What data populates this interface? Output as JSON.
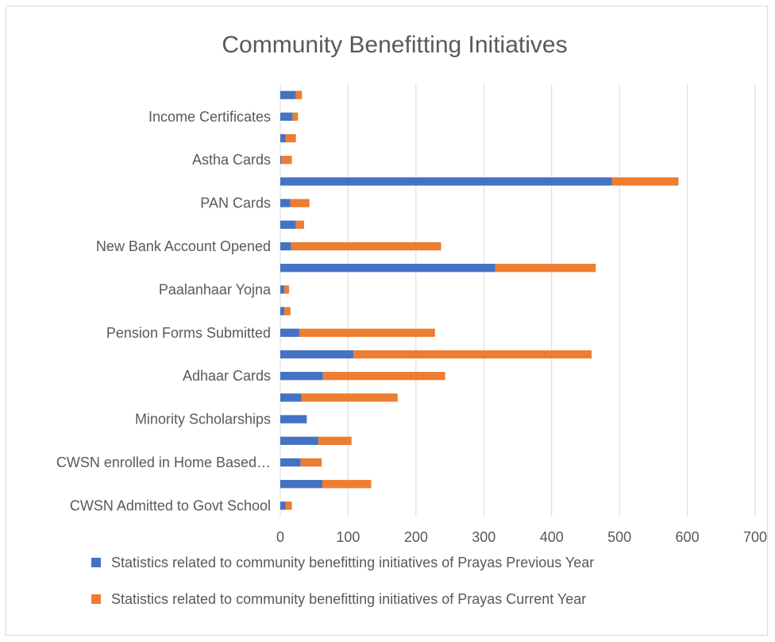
{
  "chart_data": {
    "type": "bar",
    "orientation": "horizontal",
    "stacked": true,
    "title": "Community Benefitting Initiatives",
    "xlim": [
      0,
      700
    ],
    "xticks": [
      0,
      100,
      200,
      300,
      400,
      500,
      600,
      700
    ],
    "grid": true,
    "legend_position": "bottom",
    "categories": [
      "CWSN Admitted to Govt School",
      "",
      "CWSN enrolled in Home Based…",
      "",
      "Minority Scholarships",
      "",
      "Adhaar Cards",
      "",
      "Pension Forms Submitted",
      "",
      "Paalanhaar Yojna",
      "",
      "New Bank Account Opened",
      "",
      "PAN Cards",
      "",
      "Astha Cards",
      "",
      "Income Certificates",
      ""
    ],
    "series": [
      {
        "name": "Statistics related to community benefitting initiatives of Prayas Previous Year",
        "color": "#4472c4",
        "values": [
          8,
          62,
          30,
          56,
          39,
          31,
          63,
          108,
          28,
          6,
          6,
          317,
          16,
          23,
          15,
          489,
          2,
          8,
          18,
          23
        ]
      },
      {
        "name": "Statistics related to community benefitting initiatives of Prayas Current Year",
        "color": "#ed7d31",
        "values": [
          9,
          72,
          31,
          49,
          0,
          142,
          180,
          351,
          200,
          9,
          7,
          148,
          221,
          12,
          28,
          98,
          15,
          15,
          8,
          9
        ]
      }
    ]
  }
}
